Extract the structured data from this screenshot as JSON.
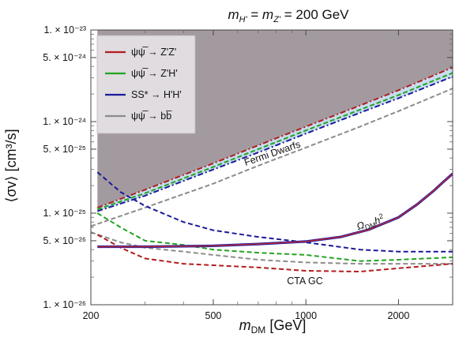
{
  "colors": {
    "excluded_region": "#a39a9f",
    "band": "#c8dcef",
    "red": "#b01e1e",
    "green": "#22a322",
    "blue": "#1a1a9a",
    "gray": "#8c8c8c",
    "relic_outer": "#1f1fa8",
    "relic_inner": "#c0282c",
    "legend_bg": "#e0dcdf"
  },
  "chart_data": {
    "type": "line",
    "title_parts": {
      "m1": "m",
      "s1": "H'",
      "eq1": " = ",
      "m2": "m",
      "s2": "Z'",
      "rest": " = 200 GeV"
    },
    "xlabel_parts": {
      "m": "m",
      "sub": "DM",
      "unit": " [GeV]"
    },
    "ylabel": "⟨σv⟩ [cm³/s]",
    "x_scale": "log",
    "y_scale": "log",
    "xlim": [
      200,
      3000
    ],
    "ylim": [
      1e-26,
      1e-23
    ],
    "x_ticks": [
      200,
      500,
      1000,
      2000
    ],
    "x_tick_labels": [
      "200",
      "500",
      "1000",
      "2000"
    ],
    "y_ticks": [
      1e-26,
      5e-26,
      1e-25,
      5e-25,
      1e-24,
      5e-24,
      1e-23
    ],
    "y_tick_labels": [
      "1. × 10⁻²⁶",
      "5. × 10⁻²⁶",
      "1. × 10⁻²⁵",
      "5. × 10⁻²⁵",
      "1. × 10⁻²⁴",
      "5. × 10⁻²⁴",
      "1. × 10⁻²³"
    ],
    "grid": false,
    "legend_position": "top-left",
    "legend": [
      {
        "label": "ψψ̅ → Z'Z'",
        "color": "red"
      },
      {
        "label": "ψψ̅ → Z'H'",
        "color": "green"
      },
      {
        "label": "SS* → H'H'",
        "color": "blue"
      },
      {
        "label": "ψψ̅ → bb̅",
        "color": "gray"
      }
    ],
    "annotations": {
      "fermi": "Fermi Dwarfs",
      "relic_main": "Ω",
      "relic_sub": "DM",
      "relic_h": "h",
      "relic_sup": "2",
      "cta": "CTA GC"
    },
    "fermi_series": [
      {
        "name": "ψψ̅ → Z'Z'",
        "color": "red",
        "x": [
          210,
          300,
          500,
          700,
          1000,
          1500,
          2000,
          3000
        ],
        "y": [
          1.15e-25,
          1.8e-25,
          3.5e-25,
          5.5e-25,
          8.8e-25,
          1.5e-24,
          2.2e-24,
          3.9e-24
        ]
      },
      {
        "name": "ψψ̅ → Z'H'",
        "color": "green",
        "x": [
          210,
          300,
          500,
          700,
          1000,
          1500,
          2000,
          3000
        ],
        "y": [
          1.1e-25,
          1.65e-25,
          3.2e-25,
          5e-25,
          8e-25,
          1.35e-24,
          1.95e-24,
          3.4e-24
        ]
      },
      {
        "name": "SS* → H'H'",
        "color": "blue",
        "x": [
          210,
          300,
          500,
          700,
          1000,
          1500,
          2000,
          3000
        ],
        "y": [
          1.05e-25,
          1.55e-25,
          3e-25,
          4.6e-25,
          7.4e-25,
          1.25e-24,
          1.8e-24,
          3.1e-24
        ]
      },
      {
        "name": "ψψ̅ → bb̅",
        "color": "gray",
        "x": [
          200,
          300,
          500,
          700,
          1000,
          1500,
          2000,
          3000
        ],
        "y": [
          7.2e-26,
          1.15e-25,
          2.1e-25,
          3.3e-25,
          5.2e-25,
          8.8e-25,
          1.3e-24,
          2.3e-24
        ]
      }
    ],
    "cta_series": [
      {
        "name": "SS* → H'H'",
        "color": "blue",
        "x": [
          210,
          250,
          300,
          400,
          500,
          700,
          1000,
          1500,
          2000,
          3000
        ],
        "y": [
          2.8e-25,
          1.7e-25,
          1.2e-25,
          8e-26,
          6.5e-26,
          5.5e-26,
          4.8e-26,
          4e-26,
          3.8e-26,
          3.8e-26
        ]
      },
      {
        "name": "ψψ̅ → Z'H'",
        "color": "green",
        "x": [
          210,
          250,
          300,
          400,
          500,
          700,
          1000,
          1500,
          2000,
          3000
        ],
        "y": [
          1e-25,
          7e-26,
          5e-26,
          4.5e-26,
          4e-26,
          3.7e-26,
          3.5e-26,
          3e-26,
          3.1e-26,
          3.3e-26
        ]
      },
      {
        "name": "ψψ̅ → bb̅",
        "color": "gray",
        "x": [
          200,
          250,
          300,
          400,
          500,
          700,
          1000,
          1500,
          2000,
          3000
        ],
        "y": [
          6.2e-26,
          4.8e-26,
          4.2e-26,
          3.8e-26,
          3.5e-26,
          3.1e-26,
          2.9e-26,
          2.8e-26,
          2.8e-26,
          2.8e-26
        ]
      },
      {
        "name": "ψψ̅ → Z'Z'",
        "color": "red",
        "x": [
          210,
          250,
          300,
          400,
          500,
          700,
          1000,
          1500,
          2000,
          3000
        ],
        "y": [
          5.8e-26,
          4.2e-26,
          3.2e-26,
          2.8e-26,
          2.7e-26,
          2.55e-26,
          2.35e-26,
          2.3e-26,
          2.5e-26,
          2.8e-26
        ]
      }
    ],
    "relic_curve": {
      "x": [
        210,
        300,
        500,
        700,
        1000,
        1300,
        1600,
        2000,
        2300,
        2600,
        2800,
        3000
      ],
      "y": [
        4.3e-26,
        4.3e-26,
        4.4e-26,
        4.6e-26,
        4.9e-26,
        5.5e-26,
        6.6e-26,
        9e-26,
        1.25e-25,
        1.75e-25,
        2.2e-25,
        2.7e-25
      ]
    }
  }
}
